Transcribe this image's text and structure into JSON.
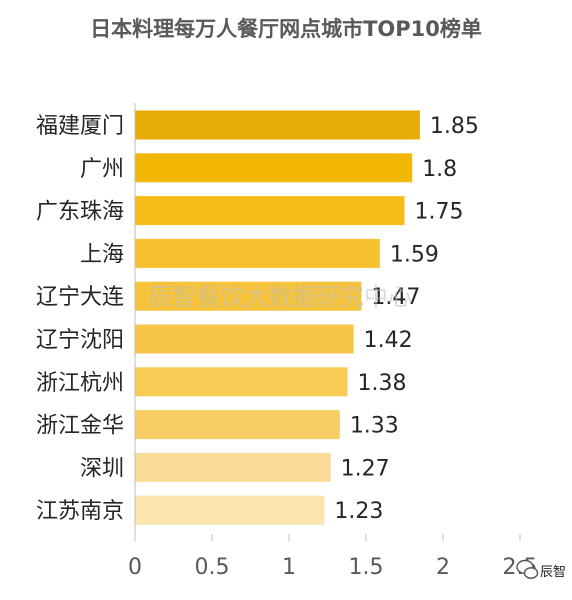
{
  "watermark": "辰智餐饮大数据研究中心",
  "brand": {
    "text": "辰智",
    "icon": "wechat-logo-icon"
  },
  "chart_data": {
    "type": "bar",
    "orientation": "horizontal",
    "title": "日本料理每万人餐厅网点城市TOP10榜单",
    "xlabel": "",
    "ylabel": "",
    "categories": [
      "福建厦门",
      "广州",
      "广东珠海",
      "上海",
      "辽宁大连",
      "辽宁沈阳",
      "浙江杭州",
      "浙江金华",
      "深圳",
      "江苏南京"
    ],
    "values": [
      1.85,
      1.8,
      1.75,
      1.59,
      1.47,
      1.42,
      1.38,
      1.33,
      1.27,
      1.23
    ],
    "value_labels": [
      "1.85",
      "1.8",
      "1.75",
      "1.59",
      "1.47",
      "1.42",
      "1.38",
      "1.33",
      "1.27",
      "1.23"
    ],
    "xlim": [
      0,
      2.5
    ],
    "xticks": [
      0,
      0.5,
      1,
      1.5,
      2,
      2.5
    ],
    "xtick_labels": [
      "0",
      "0.5",
      "1",
      "1.5",
      "2",
      "2.5"
    ],
    "grid": false,
    "legend": "none",
    "colors": [
      "#E5AC07",
      "#F2B705",
      "#F6BD1A",
      "#F7C02E",
      "#F6C33B",
      "#F7C546",
      "#F8CA56",
      "#F8CE64",
      "#FADB95",
      "#FBE4AE"
    ]
  }
}
